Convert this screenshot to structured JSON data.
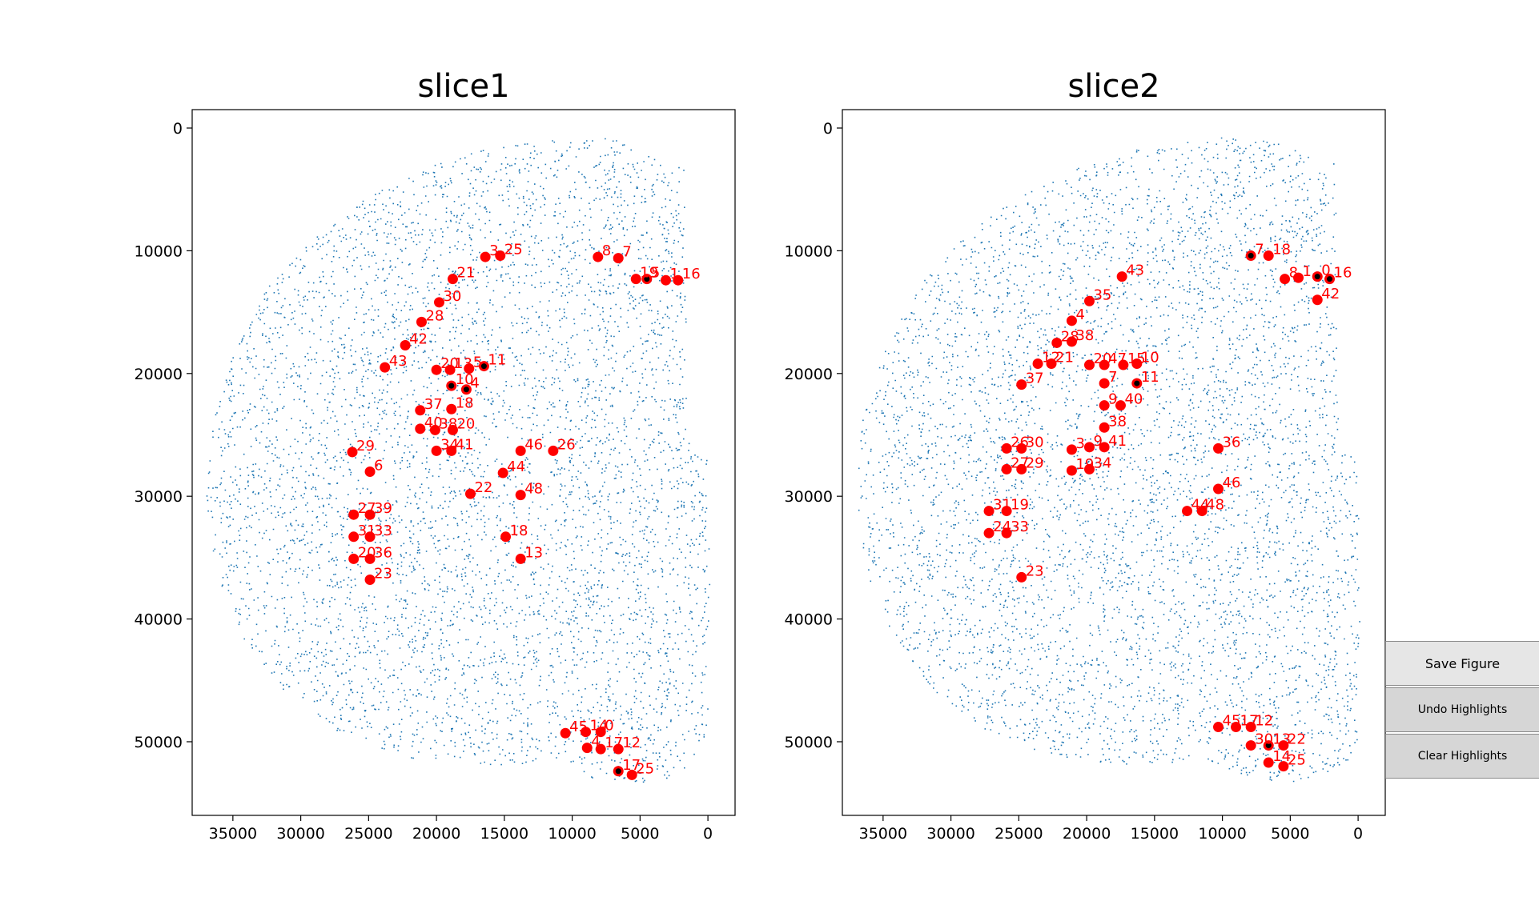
{
  "buttons": {
    "save_label": "Save Figure",
    "undo_label": "Undo Highlights",
    "clear_label": "Clear Highlights"
  },
  "colors": {
    "cells": "#1f77b4",
    "landmark": "#ff0000",
    "landmark_label": "#ff0000",
    "highlight": "#000000"
  },
  "chart_data": [
    {
      "type": "scatter",
      "title": "slice1",
      "xlabel": "",
      "ylabel": "",
      "xlim": [
        38000,
        -2000
      ],
      "ylim": [
        56000,
        -1500
      ],
      "x_inverted": true,
      "y_inverted": true,
      "xticks": [
        35000,
        30000,
        25000,
        20000,
        15000,
        10000,
        5000,
        0
      ],
      "yticks": [
        0,
        10000,
        20000,
        30000,
        40000,
        50000
      ],
      "grid": false,
      "series": [
        {
          "points": [
            {
              "label": "3",
              "x": 16400,
              "y": 10500
            },
            {
              "label": "25",
              "x": 15300,
              "y": 10400
            },
            {
              "label": "8",
              "x": 8100,
              "y": 10500
            },
            {
              "label": "7",
              "x": 6600,
              "y": 10600
            },
            {
              "label": "19",
              "x": 5300,
              "y": 12300
            },
            {
              "label": "5",
              "x": 4500,
              "y": 12300
            },
            {
              "label": "1",
              "x": 3100,
              "y": 12400
            },
            {
              "label": "16",
              "x": 2200,
              "y": 12400
            },
            {
              "label": "21",
              "x": 18800,
              "y": 12300
            },
            {
              "label": "30",
              "x": 19800,
              "y": 14200
            },
            {
              "label": "28",
              "x": 21100,
              "y": 15800
            },
            {
              "label": "42",
              "x": 22300,
              "y": 17700
            },
            {
              "label": "43",
              "x": 23800,
              "y": 19500
            },
            {
              "label": "20",
              "x": 20000,
              "y": 19700
            },
            {
              "label": "13",
              "x": 19000,
              "y": 19700
            },
            {
              "label": "5",
              "x": 17600,
              "y": 19600
            },
            {
              "label": "11",
              "x": 16500,
              "y": 19400
            },
            {
              "label": "10",
              "x": 18900,
              "y": 21000
            },
            {
              "label": "4",
              "x": 17800,
              "y": 21300
            },
            {
              "label": "37",
              "x": 21200,
              "y": 23000
            },
            {
              "label": "18",
              "x": 18900,
              "y": 22900
            },
            {
              "label": "40",
              "x": 21200,
              "y": 24500
            },
            {
              "label": "38",
              "x": 20100,
              "y": 24600
            },
            {
              "label": "20",
              "x": 18800,
              "y": 24600
            },
            {
              "label": "34",
              "x": 20000,
              "y": 26300
            },
            {
              "label": "41",
              "x": 18900,
              "y": 26300
            },
            {
              "label": "29",
              "x": 26200,
              "y": 26400
            },
            {
              "label": "6",
              "x": 24900,
              "y": 28000
            },
            {
              "label": "46",
              "x": 13800,
              "y": 26300
            },
            {
              "label": "26",
              "x": 11400,
              "y": 26300
            },
            {
              "label": "44",
              "x": 15100,
              "y": 28100
            },
            {
              "label": "22",
              "x": 17500,
              "y": 29800
            },
            {
              "label": "48",
              "x": 13800,
              "y": 29900
            },
            {
              "label": "27",
              "x": 26100,
              "y": 31500
            },
            {
              "label": "39",
              "x": 24900,
              "y": 31500
            },
            {
              "label": "31",
              "x": 26100,
              "y": 33300
            },
            {
              "label": "33",
              "x": 24900,
              "y": 33300
            },
            {
              "label": "18",
              "x": 14900,
              "y": 33300
            },
            {
              "label": "20",
              "x": 26100,
              "y": 35100
            },
            {
              "label": "36",
              "x": 24900,
              "y": 35100
            },
            {
              "label": "13",
              "x": 13800,
              "y": 35100
            },
            {
              "label": "23",
              "x": 24900,
              "y": 36800
            },
            {
              "label": "45",
              "x": 10500,
              "y": 49300
            },
            {
              "label": "14",
              "x": 9000,
              "y": 49200
            },
            {
              "label": "0",
              "x": 7900,
              "y": 49200
            },
            {
              "label": "4",
              "x": 8900,
              "y": 50500
            },
            {
              "label": "17",
              "x": 7900,
              "y": 50600
            },
            {
              "label": "12",
              "x": 6600,
              "y": 50600
            },
            {
              "label": "17",
              "x": 6600,
              "y": 52400
            },
            {
              "label": "25",
              "x": 5600,
              "y": 52700
            }
          ]
        }
      ],
      "highlighted": [
        {
          "x": 4500,
          "y": 12300
        },
        {
          "x": 16500,
          "y": 19400
        },
        {
          "x": 18900,
          "y": 21000
        },
        {
          "x": 17800,
          "y": 21300
        },
        {
          "x": 6600,
          "y": 52400
        }
      ]
    },
    {
      "type": "scatter",
      "title": "slice2",
      "xlabel": "",
      "ylabel": "",
      "xlim": [
        38000,
        -2000
      ],
      "ylim": [
        56000,
        -1500
      ],
      "x_inverted": true,
      "y_inverted": true,
      "xticks": [
        35000,
        30000,
        25000,
        20000,
        15000,
        10000,
        5000,
        0
      ],
      "yticks": [
        0,
        10000,
        20000,
        30000,
        40000,
        50000
      ],
      "grid": false,
      "series": [
        {
          "points": [
            {
              "label": "7",
              "x": 7900,
              "y": 10400
            },
            {
              "label": "18",
              "x": 6600,
              "y": 10400
            },
            {
              "label": "8",
              "x": 5400,
              "y": 12300
            },
            {
              "label": "1",
              "x": 4400,
              "y": 12200
            },
            {
              "label": "0",
              "x": 3000,
              "y": 12100
            },
            {
              "label": "16",
              "x": 2100,
              "y": 12300
            },
            {
              "label": "42",
              "x": 3000,
              "y": 14000
            },
            {
              "label": "43",
              "x": 17400,
              "y": 12100
            },
            {
              "label": "35",
              "x": 19800,
              "y": 14100
            },
            {
              "label": "4",
              "x": 21100,
              "y": 15700
            },
            {
              "label": "28",
              "x": 22200,
              "y": 17500
            },
            {
              "label": "38",
              "x": 21100,
              "y": 17400
            },
            {
              "label": "12",
              "x": 23600,
              "y": 19200
            },
            {
              "label": "21",
              "x": 22600,
              "y": 19200
            },
            {
              "label": "20",
              "x": 19800,
              "y": 19300
            },
            {
              "label": "47",
              "x": 18700,
              "y": 19300
            },
            {
              "label": "15",
              "x": 17300,
              "y": 19300
            },
            {
              "label": "10",
              "x": 16300,
              "y": 19200
            },
            {
              "label": "37",
              "x": 24800,
              "y": 20900
            },
            {
              "label": "7",
              "x": 18700,
              "y": 20800
            },
            {
              "label": "11",
              "x": 16300,
              "y": 20800
            },
            {
              "label": "9",
              "x": 18700,
              "y": 22600
            },
            {
              "label": "40",
              "x": 17500,
              "y": 22600
            },
            {
              "label": "38",
              "x": 18700,
              "y": 24400
            },
            {
              "label": "26",
              "x": 25900,
              "y": 26100
            },
            {
              "label": "30",
              "x": 24800,
              "y": 26100
            },
            {
              "label": "3",
              "x": 21100,
              "y": 26200
            },
            {
              "label": "9",
              "x": 19800,
              "y": 26000
            },
            {
              "label": "41",
              "x": 18700,
              "y": 26000
            },
            {
              "label": "36",
              "x": 10300,
              "y": 26100
            },
            {
              "label": "27",
              "x": 25900,
              "y": 27800
            },
            {
              "label": "29",
              "x": 24800,
              "y": 27800
            },
            {
              "label": "19",
              "x": 21100,
              "y": 27900
            },
            {
              "label": "34",
              "x": 19800,
              "y": 27800
            },
            {
              "label": "46",
              "x": 10300,
              "y": 29400
            },
            {
              "label": "31",
              "x": 27200,
              "y": 31200
            },
            {
              "label": "19",
              "x": 25900,
              "y": 31200
            },
            {
              "label": "44",
              "x": 12600,
              "y": 31200
            },
            {
              "label": "48",
              "x": 11500,
              "y": 31200
            },
            {
              "label": "24",
              "x": 27200,
              "y": 33000
            },
            {
              "label": "33",
              "x": 25900,
              "y": 33000
            },
            {
              "label": "23",
              "x": 24800,
              "y": 36600
            },
            {
              "label": "45",
              "x": 10300,
              "y": 48800
            },
            {
              "label": "17",
              "x": 9000,
              "y": 48800
            },
            {
              "label": "12",
              "x": 7900,
              "y": 48800
            },
            {
              "label": "30",
              "x": 7900,
              "y": 50300
            },
            {
              "label": "13",
              "x": 6600,
              "y": 50300
            },
            {
              "label": "22",
              "x": 5500,
              "y": 50300
            },
            {
              "label": "14",
              "x": 6600,
              "y": 51700
            },
            {
              "label": "25",
              "x": 5500,
              "y": 52000
            }
          ]
        }
      ],
      "highlighted": [
        {
          "x": 7900,
          "y": 10400
        },
        {
          "x": 3000,
          "y": 12100
        },
        {
          "x": 2100,
          "y": 12300
        },
        {
          "x": 16300,
          "y": 20800
        },
        {
          "x": 6600,
          "y": 50300
        }
      ]
    }
  ]
}
